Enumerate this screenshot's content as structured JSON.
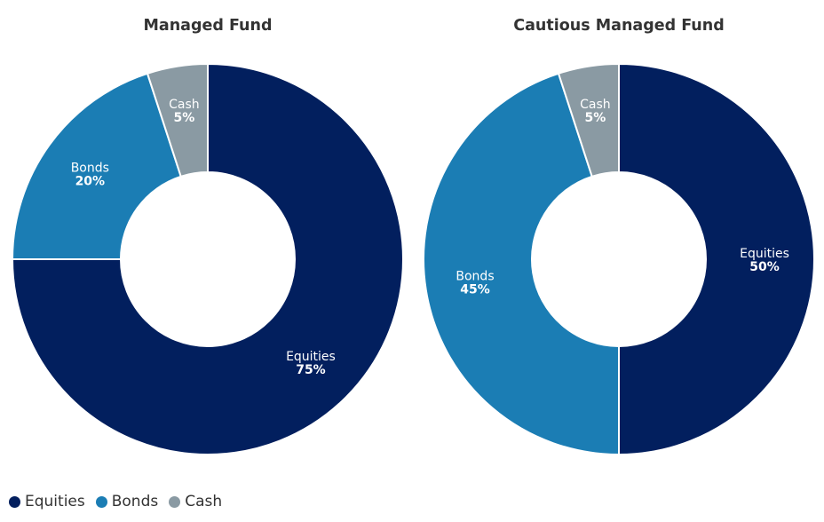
{
  "chart_data": [
    {
      "type": "pie",
      "title": "Managed Fund",
      "categories": [
        "Equities",
        "Bonds",
        "Cash"
      ],
      "values": [
        75,
        20,
        5
      ],
      "value_labels": [
        "75%",
        "20%",
        "5%"
      ]
    },
    {
      "type": "pie",
      "title": "Cautious Managed Fund",
      "categories": [
        "Equities",
        "Bonds",
        "Cash"
      ],
      "values": [
        50,
        45,
        5
      ],
      "value_labels": [
        "50%",
        "45%",
        "5%"
      ]
    }
  ],
  "colors": {
    "Equities": "#021f5e",
    "Bonds": "#1b7db4",
    "Cash": "#8a9aa3"
  },
  "legend": {
    "position": "bottom-left",
    "items": [
      {
        "label": "Equities"
      },
      {
        "label": "Bonds"
      },
      {
        "label": "Cash"
      }
    ]
  }
}
